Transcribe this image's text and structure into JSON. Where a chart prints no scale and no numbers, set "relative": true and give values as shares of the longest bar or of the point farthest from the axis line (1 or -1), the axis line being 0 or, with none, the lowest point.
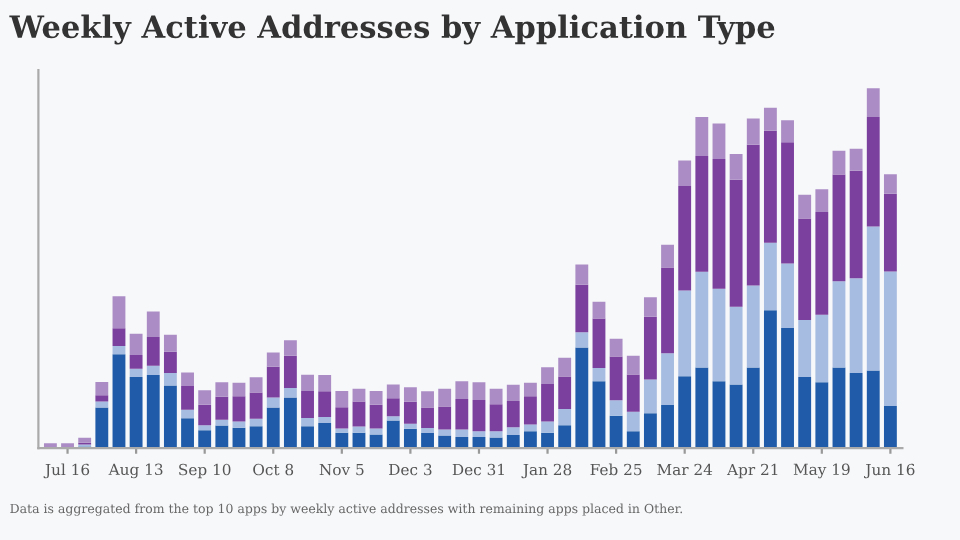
{
  "chart_data": {
    "type": "bar",
    "stacked": true,
    "relative": true,
    "title": "Weekly Active Addresses by Application Type",
    "annotations": [
      "Data is aggregated from the top 10 apps by weekly active addresses with remaining apps placed in Other."
    ],
    "categories": [
      null,
      "Jul 16",
      null,
      null,
      null,
      "Aug 13",
      null,
      null,
      null,
      "Sep 10",
      null,
      null,
      null,
      "Oct 8",
      null,
      null,
      null,
      "Nov 5",
      null,
      null,
      null,
      "Dec 3",
      null,
      null,
      null,
      "Dec 31",
      null,
      null,
      null,
      "Jan 28",
      null,
      null,
      null,
      "Feb 25",
      null,
      null,
      null,
      "Mar 24",
      null,
      null,
      null,
      "Apr 21",
      null,
      null,
      null,
      "May 19",
      null,
      null,
      null,
      "Jun 16"
    ],
    "series": [
      {
        "color": "#1f5ba8",
        "values": [
          null,
          null,
          0.005,
          0.113,
          0.261,
          0.198,
          0.203,
          0.174,
          0.083,
          0.05,
          0.063,
          0.057,
          0.061,
          0.113,
          0.141,
          0.061,
          0.07,
          0.043,
          0.043,
          0.038,
          0.077,
          0.054,
          0.042,
          0.035,
          0.031,
          0.031,
          0.03,
          0.037,
          0.047,
          0.043,
          0.064,
          0.28,
          0.186,
          0.09,
          0.047,
          0.097,
          0.12,
          0.2,
          0.224,
          0.186,
          0.177,
          0.224,
          0.383,
          0.334,
          0.198,
          0.183,
          0.224,
          0.209,
          0.216,
          0.117
        ]
      },
      {
        "color": "#a6bce0",
        "values": [
          null,
          null,
          0.005,
          0.017,
          0.023,
          0.023,
          0.026,
          0.035,
          0.024,
          0.014,
          0.016,
          0.017,
          0.021,
          0.028,
          0.026,
          0.023,
          0.017,
          0.012,
          0.017,
          0.017,
          0.012,
          0.014,
          0.014,
          0.017,
          0.021,
          0.016,
          0.017,
          0.021,
          0.019,
          0.031,
          0.045,
          0.042,
          0.037,
          0.043,
          0.054,
          0.094,
          0.144,
          0.238,
          0.266,
          0.257,
          0.216,
          0.228,
          0.188,
          0.179,
          0.158,
          0.188,
          0.24,
          0.263,
          0.4,
          0.374
        ]
      },
      {
        "color": "#7b3f9e",
        "values": [
          null,
          null,
          0.005,
          0.017,
          0.049,
          0.038,
          0.08,
          0.059,
          0.066,
          0.057,
          0.064,
          0.07,
          0.073,
          0.085,
          0.09,
          0.075,
          0.071,
          0.059,
          0.07,
          0.066,
          0.05,
          0.061,
          0.057,
          0.064,
          0.085,
          0.087,
          0.075,
          0.073,
          0.078,
          0.104,
          0.09,
          0.132,
          0.137,
          0.122,
          0.104,
          0.174,
          0.238,
          0.29,
          0.322,
          0.36,
          0.353,
          0.391,
          0.311,
          0.337,
          0.282,
          0.285,
          0.296,
          0.299,
          0.304,
          0.216
        ]
      },
      {
        "color": "#ab8cc4",
        "values": [
          0.014,
          0.014,
          0.014,
          0.037,
          0.089,
          0.059,
          0.071,
          0.047,
          0.037,
          0.04,
          0.04,
          0.038,
          0.042,
          0.04,
          0.043,
          0.045,
          0.045,
          0.045,
          0.035,
          0.038,
          0.038,
          0.04,
          0.045,
          0.049,
          0.049,
          0.049,
          0.043,
          0.045,
          0.038,
          0.047,
          0.052,
          0.056,
          0.047,
          0.049,
          0.052,
          0.054,
          0.063,
          0.071,
          0.108,
          0.099,
          0.071,
          0.073,
          0.064,
          0.061,
          0.066,
          0.063,
          0.066,
          0.061,
          0.08,
          0.054
        ]
      }
    ]
  }
}
